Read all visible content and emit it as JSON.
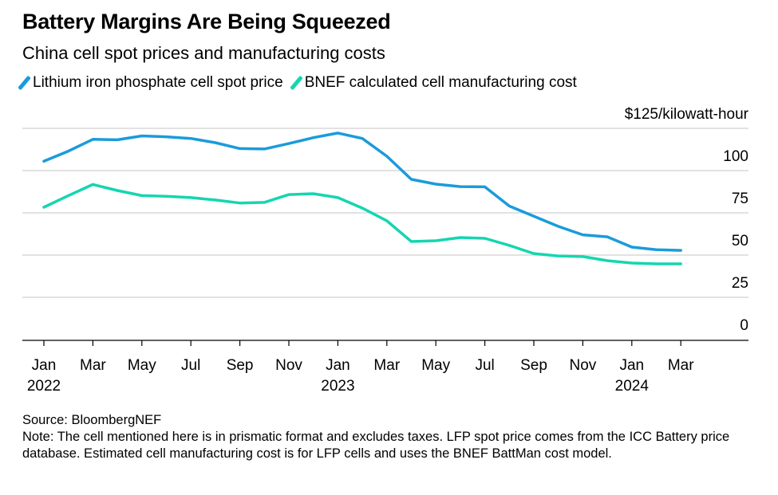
{
  "title": "Battery Margins Are Being Squeezed",
  "subtitle": "China cell spot prices and manufacturing costs",
  "colors": {
    "spot": "#1a9bdb",
    "cost": "#14d6b0",
    "grid": "#d9d9d9",
    "axis": "#000000"
  },
  "footer": {
    "source": "Source: BloombergNEF",
    "note": "Note: The cell mentioned here is in prismatic format and excludes taxes. LFP spot price comes from the ICC Battery price database. Estimated cell manufacturing cost is for LFP cells and uses the BNEF BattMan cost model."
  },
  "chart_data": {
    "type": "line",
    "title": "Battery Margins Are Being Squeezed",
    "subtitle": "China cell spot prices and manufacturing costs",
    "ylabel": "$125/kilowatt-hour",
    "ylim": [
      0,
      125
    ],
    "yticks": [
      0,
      25,
      50,
      75,
      100,
      125
    ],
    "ytick_labels": [
      "0",
      "25",
      "50",
      "75",
      "100",
      "$125/kilowatt-hour"
    ],
    "grid": true,
    "legend": "top-left",
    "x": [
      "2022-01",
      "2022-02",
      "2022-03",
      "2022-04",
      "2022-05",
      "2022-06",
      "2022-07",
      "2022-08",
      "2022-09",
      "2022-10",
      "2022-11",
      "2022-12",
      "2023-01",
      "2023-02",
      "2023-03",
      "2023-04",
      "2023-05",
      "2023-06",
      "2023-07",
      "2023-08",
      "2023-09",
      "2023-10",
      "2023-11",
      "2023-12",
      "2024-01",
      "2024-02",
      "2024-03"
    ],
    "xtick_labels": [
      {
        "month": "Jan",
        "year": "2022"
      },
      {
        "month": "Mar",
        "year": ""
      },
      {
        "month": "May",
        "year": ""
      },
      {
        "month": "Jul",
        "year": ""
      },
      {
        "month": "Sep",
        "year": ""
      },
      {
        "month": "Nov",
        "year": ""
      },
      {
        "month": "Jan",
        "year": "2023"
      },
      {
        "month": "Mar",
        "year": ""
      },
      {
        "month": "May",
        "year": ""
      },
      {
        "month": "Jul",
        "year": ""
      },
      {
        "month": "Sep",
        "year": ""
      },
      {
        "month": "Nov",
        "year": ""
      },
      {
        "month": "Jan",
        "year": "2024"
      },
      {
        "month": "Mar",
        "year": ""
      }
    ],
    "series": [
      {
        "name": "Lithium iron phosphate cell spot price",
        "color": "#1a9bdb",
        "values": [
          105.5,
          111.5,
          118.5,
          118.2,
          120.5,
          120,
          119,
          116.5,
          113,
          112.8,
          116,
          119.5,
          122.2,
          119,
          108.5,
          94.8,
          92,
          90.5,
          90.4,
          79,
          73,
          67,
          62,
          60.8,
          54.7,
          53.2,
          52.8
        ]
      },
      {
        "name": "BNEF calculated cell manufacturing cost",
        "color": "#14d6b0",
        "values": [
          78.3,
          85.2,
          91.8,
          88.2,
          85.2,
          84.8,
          84,
          82.6,
          80.8,
          81.2,
          85.8,
          86.3,
          84,
          77.8,
          70.3,
          58,
          58.5,
          60.4,
          59.9,
          55.7,
          50.9,
          49.5,
          49.1,
          46.7,
          45.3,
          44.8,
          44.8
        ]
      }
    ]
  }
}
